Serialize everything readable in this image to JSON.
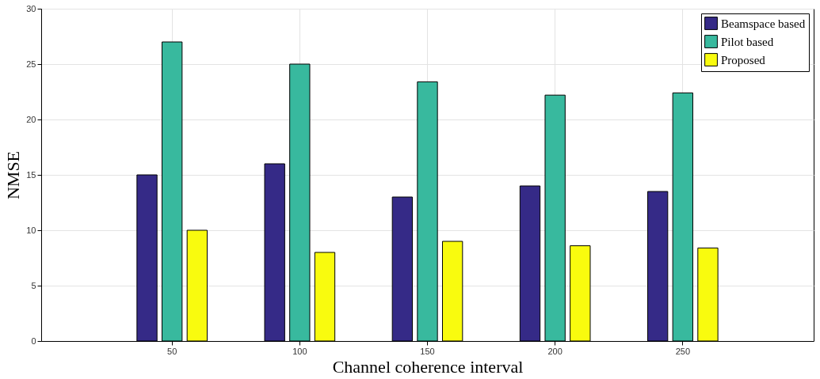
{
  "chart_data": {
    "type": "bar",
    "xlabel": "Channel coherence interval",
    "ylabel": "NMSE",
    "categories": [
      "50",
      "100",
      "150",
      "200",
      "250"
    ],
    "series": [
      {
        "name": "Beamspace based",
        "color": "#352a87",
        "values": [
          15,
          16,
          13,
          14,
          13.5
        ]
      },
      {
        "name": "Pilot based",
        "color": "#38b99e",
        "values": [
          27,
          25,
          23.4,
          22.2,
          22.4
        ]
      },
      {
        "name": "Proposed",
        "color": "#f9fb0e",
        "values": [
          10,
          8,
          9,
          8.6,
          8.4
        ]
      }
    ],
    "ylim": [
      0,
      30
    ],
    "yticks": [
      0,
      5,
      10,
      15,
      20,
      25,
      30
    ],
    "grid": true,
    "legend": "top right"
  }
}
